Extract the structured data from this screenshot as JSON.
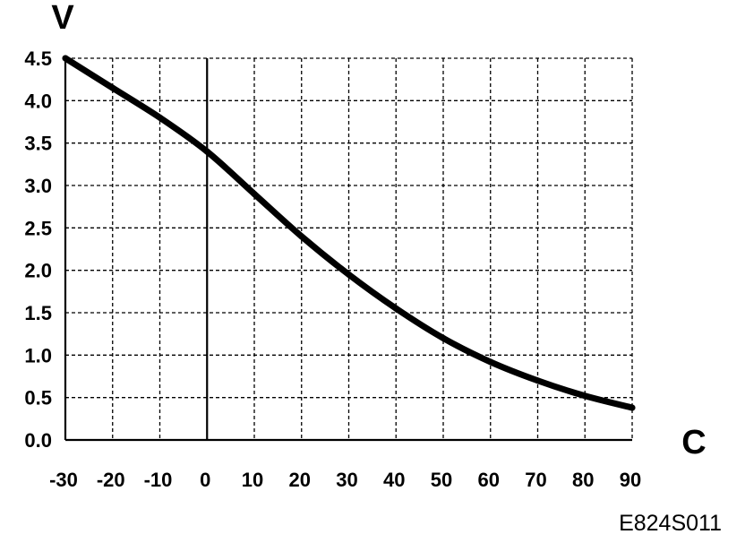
{
  "chart_data": {
    "type": "line",
    "ylabel": "V",
    "xlabel": "C",
    "figure_code": "E824S011",
    "xlim": [
      -30,
      90
    ],
    "ylim": [
      0,
      4.5
    ],
    "x_ticks": [
      "-30",
      "-20",
      "-10",
      "0",
      "10",
      "20",
      "30",
      "40",
      "50",
      "60",
      "70",
      "80",
      "90"
    ],
    "y_ticks": [
      "0.0",
      "0.5",
      "1.0",
      "1.5",
      "2.0",
      "2.5",
      "3.0",
      "3.5",
      "4.0",
      "4.5"
    ],
    "grid": true,
    "legend": "none",
    "series": [
      {
        "x": [
          -30,
          -20,
          -10,
          0,
          10,
          20,
          30,
          40,
          50,
          60,
          70,
          80,
          90
        ],
        "y": [
          4.5,
          4.15,
          3.8,
          3.4,
          2.9,
          2.4,
          1.95,
          1.55,
          1.2,
          0.92,
          0.7,
          0.52,
          0.38
        ]
      }
    ]
  }
}
